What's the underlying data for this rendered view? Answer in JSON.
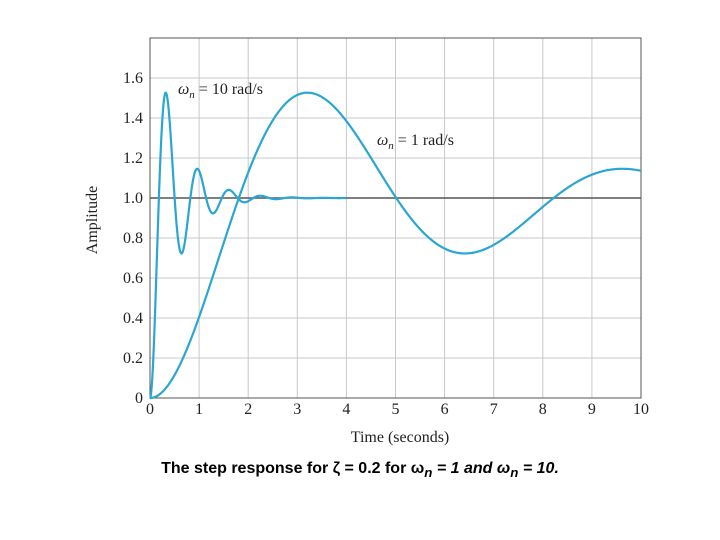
{
  "chart_data": {
    "type": "line",
    "title": "",
    "xlabel": "Time (seconds)",
    "ylabel": "Amplitude",
    "xlim": [
      0,
      10
    ],
    "ylim": [
      0,
      1.8
    ],
    "xticks": [
      "0",
      "1",
      "2",
      "3",
      "4",
      "5",
      "6",
      "7",
      "8",
      "9",
      "10"
    ],
    "yticks": [
      "0",
      "0.2",
      "0.4",
      "0.6",
      "0.8",
      "1.0",
      "1.2",
      "1.4",
      "1.6"
    ],
    "grid": true,
    "reference_line": 1.0,
    "zeta": 0.2,
    "series": [
      {
        "name": "ωn = 10 rad/s",
        "wn": 10,
        "t_end": 4.0,
        "color": "#2aa6d3"
      },
      {
        "name": "ωn = 1 rad/s",
        "wn": 1,
        "t_end": 10.0,
        "color": "#2aa6d3"
      }
    ],
    "annotations": [
      {
        "label": "ωn = 10 rad/s",
        "omega": "ω",
        "sub": "n",
        "rest": " = 10 rad/s"
      },
      {
        "label": "ωn = 1 rad/s",
        "omega": "ω",
        "sub": "n",
        "rest": " = 1 rad/s"
      }
    ]
  },
  "caption": {
    "prefix": "The step response for ζ =  0.2 for ω",
    "sub1": "n",
    "mid": " = 1 and ω",
    "sub2": "n",
    "suffix": " = 10."
  },
  "colors": {
    "line": "#2aa6d3",
    "grid": "#c8c8c8",
    "ref": "#555555"
  }
}
